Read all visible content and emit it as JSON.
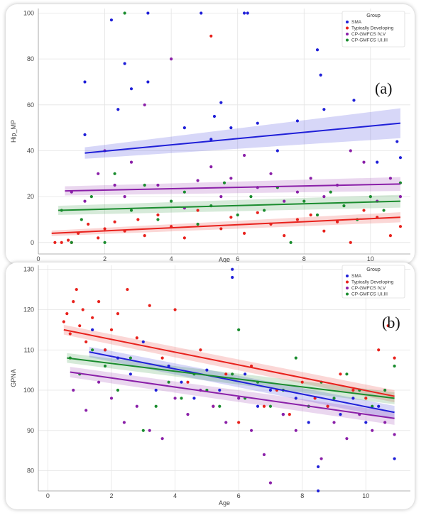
{
  "chart_data": [
    {
      "type": "scatter",
      "panel_label": "(a)",
      "title": "",
      "xlabel": "Age",
      "ylabel": "Hip_MP",
      "xlim": [
        0,
        11.2
      ],
      "ylim": [
        -5,
        102
      ],
      "xticks": [
        0,
        2,
        4,
        6,
        8,
        10
      ],
      "yticks": [
        0,
        20,
        40,
        60,
        80,
        100
      ],
      "legend": {
        "title": "Group",
        "position": "top-right",
        "entries": [
          "SMA",
          "Typically Developing",
          "CP-GMFCS IV,V",
          "CP-GMFCS I,II,III"
        ]
      },
      "series": [
        {
          "name": "SMA",
          "color": "#1f1fd8",
          "fit": {
            "x": [
              1.4,
              10.9
            ],
            "y": [
              39,
              52
            ],
            "band": [
              2.5,
              6.5
            ]
          },
          "points": [
            [
              1.4,
              47
            ],
            [
              1.4,
              70
            ],
            [
              2.2,
              97
            ],
            [
              2.4,
              58
            ],
            [
              2.6,
              78
            ],
            [
              2.8,
              67
            ],
            [
              3.3,
              100
            ],
            [
              3.3,
              70
            ],
            [
              4.4,
              50
            ],
            [
              4.9,
              100
            ],
            [
              5.2,
              45
            ],
            [
              5.3,
              55
            ],
            [
              5.5,
              61
            ],
            [
              5.8,
              50
            ],
            [
              6.2,
              100
            ],
            [
              6.3,
              100
            ],
            [
              6.6,
              52
            ],
            [
              7.2,
              40
            ],
            [
              7.8,
              53
            ],
            [
              8.4,
              84
            ],
            [
              8.5,
              73
            ],
            [
              8.6,
              58
            ],
            [
              9.5,
              62
            ],
            [
              10.2,
              35
            ],
            [
              10.8,
              44
            ],
            [
              10.9,
              37
            ]
          ]
        },
        {
          "name": "Typically Developing",
          "color": "#e8211c",
          "fit": {
            "x": [
              0.4,
              10.9
            ],
            "y": [
              4,
              11
            ],
            "band": [
              1.2,
              2.2
            ]
          },
          "points": [
            [
              0.5,
              0
            ],
            [
              0.7,
              0
            ],
            [
              0.9,
              1
            ],
            [
              1.0,
              0
            ],
            [
              1.2,
              4
            ],
            [
              1.5,
              8
            ],
            [
              1.8,
              2
            ],
            [
              2.0,
              6
            ],
            [
              2.3,
              9
            ],
            [
              2.6,
              5
            ],
            [
              3.0,
              10
            ],
            [
              3.2,
              3
            ],
            [
              3.6,
              12
            ],
            [
              4.0,
              7
            ],
            [
              4.4,
              2
            ],
            [
              4.8,
              14
            ],
            [
              5.2,
              90
            ],
            [
              5.5,
              6
            ],
            [
              5.8,
              11
            ],
            [
              6.2,
              4
            ],
            [
              6.6,
              13
            ],
            [
              7.0,
              8
            ],
            [
              7.4,
              3
            ],
            [
              7.8,
              10
            ],
            [
              8.2,
              12
            ],
            [
              8.6,
              5
            ],
            [
              9.0,
              9
            ],
            [
              9.4,
              0
            ],
            [
              9.8,
              14
            ],
            [
              10.2,
              11
            ],
            [
              10.6,
              3
            ],
            [
              10.9,
              7
            ]
          ]
        },
        {
          "name": "CP-GMFCS IV,V",
          "color": "#8a1fa8",
          "fit": {
            "x": [
              0.8,
              10.9
            ],
            "y": [
              22.5,
              25.5
            ],
            "band": [
              2.0,
              3.0
            ]
          },
          "points": [
            [
              1.0,
              22
            ],
            [
              1.4,
              18
            ],
            [
              1.8,
              30
            ],
            [
              2.0,
              40
            ],
            [
              2.3,
              25
            ],
            [
              2.6,
              20
            ],
            [
              2.8,
              35
            ],
            [
              3.2,
              60
            ],
            [
              3.6,
              25
            ],
            [
              4.0,
              80
            ],
            [
              4.4,
              15
            ],
            [
              4.8,
              27
            ],
            [
              5.2,
              33
            ],
            [
              5.5,
              20
            ],
            [
              5.8,
              28
            ],
            [
              6.2,
              38
            ],
            [
              6.6,
              24
            ],
            [
              7.0,
              30
            ],
            [
              7.4,
              18
            ],
            [
              7.8,
              22
            ],
            [
              8.2,
              28
            ],
            [
              8.6,
              20
            ],
            [
              9.0,
              25
            ],
            [
              9.4,
              40
            ],
            [
              9.8,
              35
            ],
            [
              10.2,
              18
            ],
            [
              10.6,
              28
            ],
            [
              10.9,
              20
            ]
          ]
        },
        {
          "name": "CP-GMFCS I,II,III",
          "color": "#1a8c2e",
          "fit": {
            "x": [
              0.6,
              10.9
            ],
            "y": [
              14,
              18
            ],
            "band": [
              2.0,
              2.8
            ]
          },
          "points": [
            [
              0.7,
              14
            ],
            [
              1.0,
              0
            ],
            [
              1.3,
              10
            ],
            [
              1.6,
              20
            ],
            [
              2.0,
              0
            ],
            [
              2.3,
              30
            ],
            [
              2.6,
              100
            ],
            [
              2.8,
              14
            ],
            [
              3.2,
              25
            ],
            [
              3.6,
              10
            ],
            [
              4.0,
              18
            ],
            [
              4.4,
              22
            ],
            [
              4.8,
              8
            ],
            [
              5.2,
              16
            ],
            [
              5.6,
              26
            ],
            [
              6.0,
              12
            ],
            [
              6.4,
              20
            ],
            [
              6.8,
              14
            ],
            [
              7.2,
              24
            ],
            [
              7.6,
              0
            ],
            [
              8.0,
              18
            ],
            [
              8.4,
              12
            ],
            [
              8.8,
              22
            ],
            [
              9.2,
              16
            ],
            [
              9.6,
              10
            ],
            [
              10.0,
              20
            ],
            [
              10.4,
              14
            ],
            [
              10.9,
              26
            ]
          ]
        }
      ]
    },
    {
      "type": "scatter",
      "panel_label": "(b)",
      "title": "",
      "xlabel": "Age",
      "ylabel": "GPNA",
      "xlim": [
        -0.3,
        11.4
      ],
      "ylim": [
        75,
        131
      ],
      "xticks": [
        0,
        2,
        4,
        6,
        8,
        10
      ],
      "yticks": [
        80,
        90,
        100,
        110,
        120,
        130
      ],
      "legend": {
        "title": "Group",
        "position": "top-right",
        "entries": [
          "SMA",
          "Typically Developing",
          "CP-GMFCS IV,V",
          "CP-GMFCS I,II,III"
        ]
      },
      "series": [
        {
          "name": "SMA",
          "color": "#1f1fd8",
          "fit": {
            "x": [
              1.3,
              10.9
            ],
            "y": [
              109.5,
              94.5
            ],
            "band": [
              1.3,
              1.6
            ]
          },
          "points": [
            [
              1.4,
              115
            ],
            [
              1.8,
              110
            ],
            [
              2.2,
              108
            ],
            [
              2.6,
              104
            ],
            [
              3.0,
              112
            ],
            [
              3.4,
              100
            ],
            [
              3.8,
              106
            ],
            [
              4.2,
              102
            ],
            [
              4.6,
              98
            ],
            [
              5.0,
              105
            ],
            [
              5.4,
              100
            ],
            [
              5.8,
              130
            ],
            [
              5.8,
              128
            ],
            [
              6.2,
              104
            ],
            [
              6.6,
              96
            ],
            [
              7.0,
              100
            ],
            [
              7.4,
              94
            ],
            [
              7.8,
              98
            ],
            [
              8.2,
              92
            ],
            [
              8.5,
              81
            ],
            [
              8.5,
              75
            ],
            [
              8.8,
              96
            ],
            [
              9.2,
              94
            ],
            [
              9.6,
              98
            ],
            [
              10.0,
              92
            ],
            [
              10.4,
              96
            ],
            [
              10.9,
              83
            ]
          ]
        },
        {
          "name": "Typically Developing",
          "color": "#e8211c",
          "fit": {
            "x": [
              0.5,
              10.9
            ],
            "y": [
              115,
              98.5
            ],
            "band": [
              1.2,
              1.5
            ]
          },
          "points": [
            [
              0.5,
              117
            ],
            [
              0.6,
              119
            ],
            [
              0.7,
              114
            ],
            [
              0.8,
              122
            ],
            [
              0.9,
              125
            ],
            [
              1.0,
              116
            ],
            [
              1.1,
              120
            ],
            [
              1.2,
              112
            ],
            [
              1.4,
              118
            ],
            [
              1.6,
              122
            ],
            [
              1.8,
              110
            ],
            [
              2.0,
              115
            ],
            [
              2.2,
              119
            ],
            [
              2.5,
              125
            ],
            [
              2.8,
              113
            ],
            [
              3.2,
              121
            ],
            [
              3.6,
              108
            ],
            [
              4.0,
              120
            ],
            [
              4.4,
              102
            ],
            [
              4.8,
              110
            ],
            [
              5.2,
              96
            ],
            [
              5.6,
              104
            ],
            [
              6.0,
              92
            ],
            [
              6.4,
              106
            ],
            [
              6.8,
              96
            ],
            [
              7.2,
              100
            ],
            [
              7.6,
              94
            ],
            [
              8.0,
              102
            ],
            [
              8.4,
              98
            ],
            [
              8.8,
              96
            ],
            [
              9.2,
              104
            ],
            [
              9.6,
              100
            ],
            [
              10.0,
              98
            ],
            [
              10.4,
              110
            ],
            [
              10.7,
              116
            ],
            [
              10.9,
              108
            ]
          ]
        },
        {
          "name": "CP-GMFCS IV,V",
          "color": "#8a1fa8",
          "fit": {
            "x": [
              0.7,
              10.9
            ],
            "y": [
              104.5,
              93
            ],
            "band": [
              1.3,
              1.6
            ]
          },
          "points": [
            [
              0.8,
              100
            ],
            [
              1.2,
              95
            ],
            [
              1.6,
              102
            ],
            [
              2.0,
              98
            ],
            [
              2.4,
              92
            ],
            [
              2.8,
              96
            ],
            [
              3.2,
              90
            ],
            [
              3.6,
              88
            ],
            [
              4.0,
              98
            ],
            [
              4.4,
              94
            ],
            [
              4.8,
              100
            ],
            [
              5.2,
              96
            ],
            [
              5.6,
              92
            ],
            [
              6.0,
              98
            ],
            [
              6.4,
              90
            ],
            [
              6.8,
              84
            ],
            [
              7.0,
              77
            ],
            [
              7.4,
              94
            ],
            [
              7.8,
              90
            ],
            [
              8.2,
              96
            ],
            [
              8.6,
              83
            ],
            [
              9.0,
              92
            ],
            [
              9.4,
              88
            ],
            [
              9.8,
              94
            ],
            [
              10.2,
              90
            ],
            [
              10.6,
              92
            ],
            [
              10.9,
              89
            ]
          ]
        },
        {
          "name": "CP-GMFCS I,II,III",
          "color": "#1a8c2e",
          "fit": {
            "x": [
              0.6,
              10.9
            ],
            "y": [
              108,
              98
            ],
            "band": [
              1.2,
              1.5
            ]
          },
          "points": [
            [
              0.7,
              108
            ],
            [
              1.0,
              104
            ],
            [
              1.4,
              110
            ],
            [
              1.8,
              106
            ],
            [
              2.2,
              100
            ],
            [
              2.6,
              108
            ],
            [
              3.0,
              90
            ],
            [
              3.4,
              96
            ],
            [
              3.8,
              102
            ],
            [
              4.2,
              98
            ],
            [
              4.6,
              104
            ],
            [
              5.0,
              100
            ],
            [
              5.4,
              96
            ],
            [
              5.8,
              104
            ],
            [
              6.0,
              115
            ],
            [
              6.2,
              98
            ],
            [
              6.6,
              102
            ],
            [
              7.0,
              96
            ],
            [
              7.4,
              100
            ],
            [
              7.8,
              108
            ],
            [
              8.2,
              96
            ],
            [
              8.6,
              102
            ],
            [
              9.0,
              98
            ],
            [
              9.4,
              104
            ],
            [
              9.8,
              100
            ],
            [
              10.2,
              96
            ],
            [
              10.6,
              100
            ],
            [
              10.9,
              106
            ]
          ]
        }
      ]
    }
  ]
}
